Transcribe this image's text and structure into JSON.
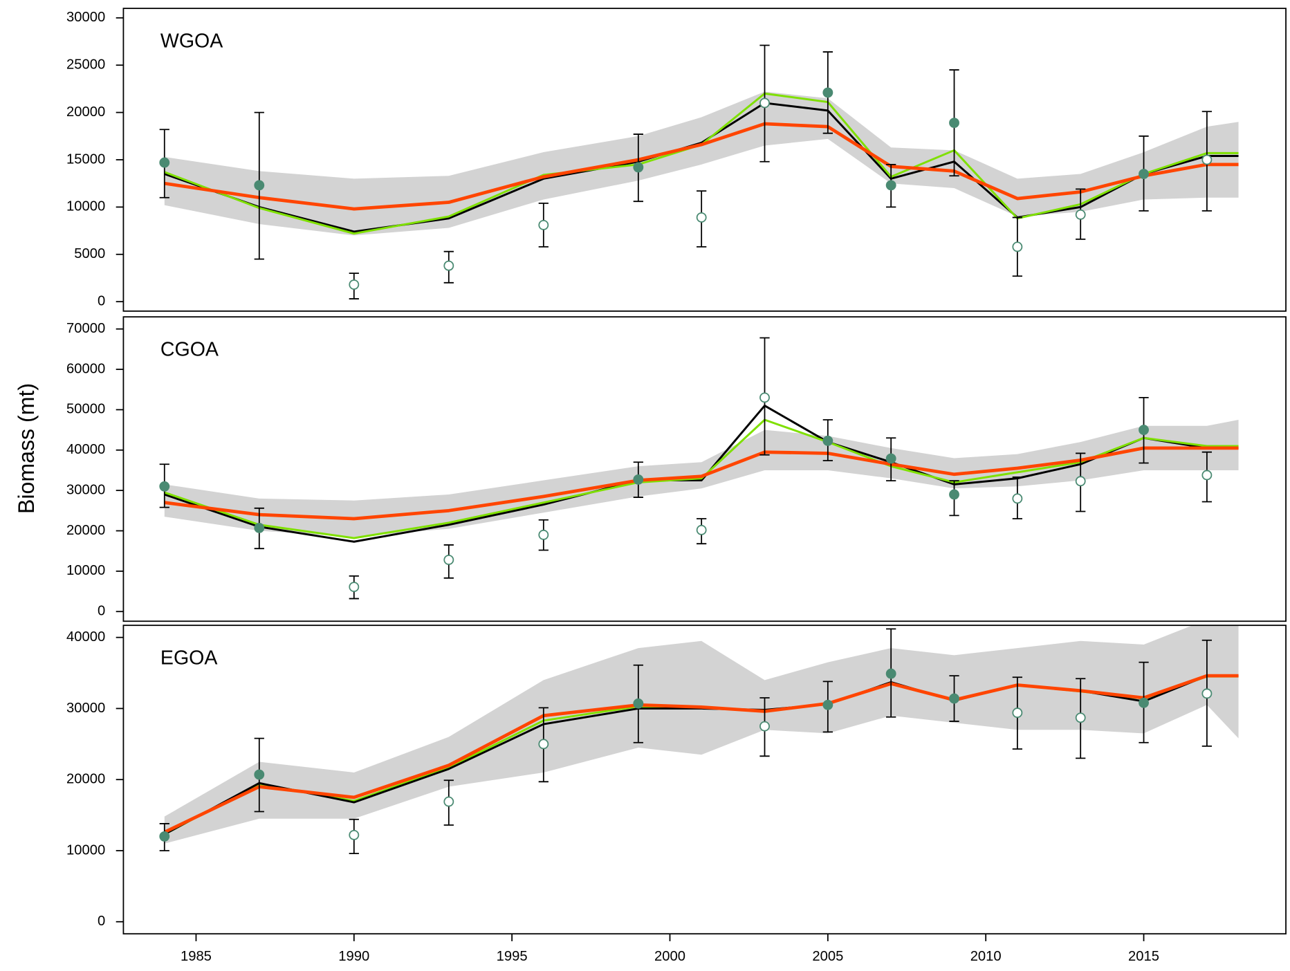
{
  "chart_data": [
    {
      "type": "line",
      "title": "WGOA",
      "x": [
        1984,
        1987,
        1990,
        1993,
        1996,
        1999,
        2001,
        2003,
        2005,
        2007,
        2009,
        2011,
        2013,
        2015,
        2017,
        2018
      ],
      "xlim": [
        1982.7,
        2019.5
      ],
      "ylim": [
        -1000,
        31000
      ],
      "yticks": [
        0,
        5000,
        10000,
        15000,
        20000,
        25000,
        30000
      ],
      "band": {
        "color": "#d3d3d3",
        "lower": [
          10200,
          8200,
          7000,
          7800,
          10800,
          12800,
          14500,
          16500,
          17200,
          12500,
          12000,
          9000,
          9500,
          10800,
          11000,
          11000
        ],
        "upper": [
          15300,
          13800,
          13000,
          13300,
          15800,
          17500,
          19500,
          22200,
          21500,
          16300,
          16000,
          13000,
          13500,
          15800,
          18500,
          19000
        ]
      },
      "series": [
        {
          "color": "#000000",
          "values": [
            13500,
            10000,
            7400,
            8800,
            13000,
            14800,
            16800,
            21000,
            20200,
            13000,
            14800,
            8900,
            10000,
            13500,
            15400,
            15400
          ]
        },
        {
          "color": "#7fe000",
          "values": [
            13700,
            9900,
            7200,
            9000,
            13400,
            14500,
            16600,
            22000,
            21100,
            13200,
            16000,
            8800,
            10300,
            13500,
            15700,
            15700
          ]
        },
        {
          "color": "#ff4500",
          "values": [
            12500,
            11000,
            9800,
            10500,
            13200,
            15000,
            16600,
            18800,
            18500,
            14300,
            13800,
            10900,
            11600,
            13300,
            14500,
            14500
          ]
        }
      ],
      "points": {
        "color": "#4a8a72",
        "x": [
          1984,
          1987,
          1990,
          1993,
          1996,
          1999,
          2001,
          2003,
          2005,
          2007,
          2009,
          2011,
          2013,
          2015,
          2017
        ],
        "values": [
          14700,
          12300,
          1800,
          3800,
          8100,
          14200,
          8900,
          21000,
          22100,
          12300,
          18900,
          5800,
          9200,
          13500,
          15000
        ],
        "lower": [
          11000,
          4500,
          300,
          2000,
          5800,
          10600,
          5800,
          14800,
          17800,
          10000,
          13300,
          2700,
          6600,
          9600,
          9600
        ],
        "upper": [
          18200,
          20000,
          3000,
          5300,
          10400,
          17700,
          11700,
          27100,
          26400,
          14500,
          24500,
          8900,
          11900,
          17500,
          20100
        ],
        "filled": [
          true,
          true,
          false,
          false,
          false,
          true,
          false,
          false,
          true,
          true,
          true,
          false,
          false,
          true,
          false
        ]
      }
    },
    {
      "type": "line",
      "title": "CGOA",
      "ylabel": "Biomass (mt)",
      "x": [
        1984,
        1987,
        1990,
        1993,
        1996,
        1999,
        2001,
        2003,
        2005,
        2007,
        2009,
        2011,
        2013,
        2015,
        2017,
        2018
      ],
      "xlim": [
        1982.7,
        2019.5
      ],
      "ylim": [
        -2400,
        73000
      ],
      "yticks": [
        0,
        10000,
        20000,
        30000,
        40000,
        50000,
        60000,
        70000
      ],
      "band": {
        "color": "#d3d3d3",
        "lower": [
          23500,
          20000,
          18500,
          20500,
          24500,
          28500,
          30500,
          35000,
          35000,
          33000,
          30500,
          31000,
          32500,
          35000,
          35000,
          35000
        ],
        "upper": [
          31500,
          28000,
          27500,
          29000,
          32500,
          36000,
          37000,
          45000,
          43500,
          40500,
          38000,
          39000,
          42000,
          46000,
          46000,
          47500
        ]
      },
      "series": [
        {
          "color": "#000000",
          "values": [
            29000,
            21000,
            17300,
            21500,
            26500,
            32500,
            32500,
            51000,
            42000,
            37000,
            31500,
            33000,
            36500,
            43000,
            40500,
            40500
          ]
        },
        {
          "color": "#7fe000",
          "values": [
            29500,
            21500,
            18200,
            22000,
            27000,
            32000,
            33000,
            47500,
            42000,
            36000,
            32000,
            34500,
            37000,
            43000,
            41000,
            41000
          ]
        },
        {
          "color": "#ff4500",
          "values": [
            27000,
            24000,
            23000,
            25000,
            28500,
            32500,
            33500,
            39500,
            39200,
            36500,
            34000,
            35500,
            37500,
            40500,
            40500,
            40500
          ]
        }
      ],
      "points": {
        "color": "#4a8a72",
        "x": [
          1984,
          1987,
          1990,
          1993,
          1996,
          1999,
          2001,
          2003,
          2005,
          2007,
          2009,
          2011,
          2013,
          2015,
          2017
        ],
        "values": [
          31000,
          20700,
          6100,
          12800,
          19000,
          32700,
          20200,
          53000,
          42300,
          37900,
          29000,
          28000,
          32300,
          45000,
          33800
        ],
        "lower": [
          25800,
          15600,
          3200,
          8300,
          15200,
          28300,
          16800,
          38800,
          37400,
          32400,
          23800,
          23000,
          24800,
          36800,
          27200
        ],
        "upper": [
          36500,
          25600,
          8800,
          16500,
          22700,
          37000,
          23000,
          67800,
          47500,
          43000,
          32400,
          33300,
          39200,
          53000,
          39500
        ],
        "filled": [
          true,
          true,
          false,
          false,
          false,
          true,
          false,
          false,
          true,
          true,
          true,
          false,
          false,
          true,
          false
        ]
      }
    },
    {
      "type": "line",
      "title": "EGOA",
      "x": [
        1984,
        1987,
        1990,
        1993,
        1996,
        1999,
        2001,
        2003,
        2005,
        2007,
        2009,
        2011,
        2013,
        2015,
        2017,
        2018
      ],
      "xlim": [
        1982.7,
        2019.5
      ],
      "ylim": [
        -1700,
        41700
      ],
      "yticks": [
        0,
        10000,
        20000,
        30000,
        40000
      ],
      "xticks": [
        1985,
        1990,
        1995,
        2000,
        2005,
        2010,
        2015
      ],
      "band": {
        "color": "#d3d3d3",
        "lower": [
          11000,
          14500,
          14500,
          19000,
          21000,
          24500,
          23500,
          27000,
          26500,
          29000,
          28000,
          27000,
          27000,
          26500,
          30500,
          25800
        ],
        "upper": [
          14800,
          22500,
          21000,
          26000,
          34000,
          38500,
          39500,
          34000,
          36500,
          38500,
          37500,
          38500,
          39500,
          39000,
          42500,
          42500
        ]
      },
      "series": [
        {
          "color": "#7fe000",
          "values": [
            12300,
            19400,
            17000,
            21700,
            28300,
            30300,
            30200,
            29600,
            30700,
            33500,
            31200,
            33300,
            32400,
            31400,
            34500,
            34500
          ]
        },
        {
          "color": "#000000",
          "values": [
            12300,
            19500,
            16800,
            21500,
            27800,
            30000,
            30000,
            29800,
            30600,
            33700,
            31100,
            33300,
            32500,
            31000,
            34600,
            34600
          ]
        },
        {
          "color": "#ff4500",
          "values": [
            12600,
            19000,
            17500,
            22000,
            29000,
            30500,
            30200,
            29600,
            30700,
            33500,
            31200,
            33300,
            32500,
            31500,
            34600,
            34600
          ]
        }
      ],
      "points": {
        "color": "#4a8a72",
        "x": [
          1984,
          1987,
          1990,
          1993,
          1996,
          1999,
          2003,
          2005,
          2007,
          2009,
          2011,
          2013,
          2015,
          2017
        ],
        "values": [
          12000,
          20700,
          12200,
          16900,
          25000,
          30700,
          27500,
          30500,
          34900,
          31400,
          29400,
          28700,
          30800,
          32100
        ],
        "lower": [
          10000,
          15500,
          9600,
          13600,
          19700,
          25200,
          23300,
          26700,
          28800,
          28200,
          24300,
          23000,
          25200,
          24700
        ],
        "upper": [
          13800,
          25800,
          14400,
          19900,
          30100,
          36100,
          31500,
          33800,
          41200,
          34600,
          34400,
          34200,
          36500,
          39600
        ],
        "filled": [
          true,
          true,
          false,
          false,
          false,
          true,
          false,
          true,
          true,
          true,
          false,
          false,
          true,
          false
        ]
      }
    }
  ]
}
